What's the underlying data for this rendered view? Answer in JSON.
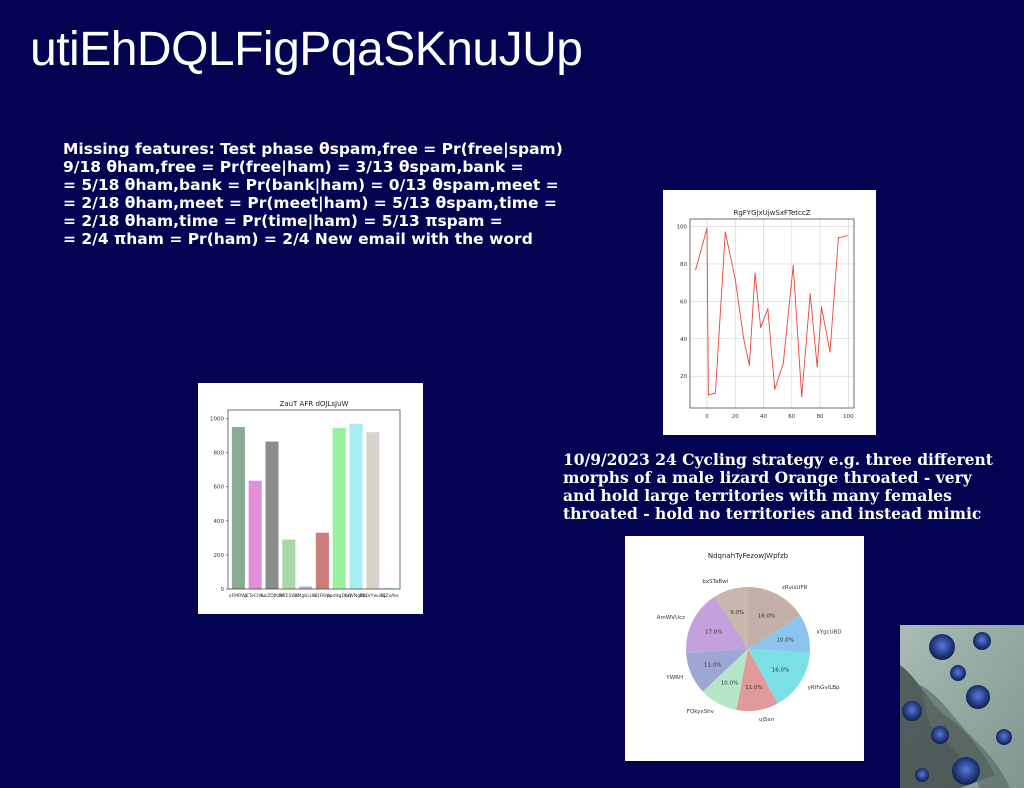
{
  "slide": {
    "title": "utiEhDQLFigPqaSKnuJUp",
    "text1_lines": [
      "Missing features: Test phase θspam,free = Pr(free|spam)",
      "9/18 θham,free = Pr(free|ham) = 3/13 θspam,bank =",
      "= 5/18 θham,bank = Pr(bank|ham) = 0/13 θspam,meet =",
      "= 2/18 θham,meet = Pr(meet|ham) = 5/13 θspam,time =",
      "= 2/18 θham,time = Pr(time|ham) = 5/13 πspam =",
      "= 2/4 πham = Pr(ham) = 2/4 New email with the word"
    ],
    "text2_lines": [
      "10/9/2023 24 Cycling strategy e.g. three different",
      "morphs of a male lizard Orange throated - very",
      "and hold large territories with many females",
      "throated - hold no territories and instead mimic"
    ],
    "colors": {
      "background": "#030352",
      "text": "#ffffff"
    }
  },
  "chart_data": [
    {
      "type": "line",
      "title": "RgFYGjxUjwSxFTetccZ",
      "x": [
        -8,
        0,
        1,
        6,
        13,
        20,
        26,
        30,
        34,
        38,
        43,
        48,
        54,
        61,
        67,
        73,
        78,
        81,
        87,
        93,
        99
      ],
      "y": [
        77,
        99,
        10,
        11,
        97,
        72,
        40,
        26,
        75,
        46,
        56,
        13,
        27,
        79,
        9,
        64,
        25,
        57,
        33,
        94,
        95
      ],
      "xlim": [
        -12,
        104
      ],
      "ylim": [
        3,
        104
      ],
      "xticks": [
        0,
        20,
        40,
        60,
        80,
        100
      ],
      "yticks": [
        20,
        40,
        60,
        80,
        100
      ],
      "grid": true,
      "color": "#e8463a"
    },
    {
      "type": "bar",
      "title": "ZauT AFR dOJLsJuW",
      "categories": [
        "xFMRWs",
        "jCTeCHkc",
        "YusZDJKAB",
        "WYESWC",
        "zMgbLHb",
        "SDFKMy",
        "poddgDoQ",
        "fuWNglNz",
        "BKLVYwuGL",
        "NjZxAte"
      ],
      "values": [
        950,
        635,
        865,
        290,
        15,
        330,
        945,
        970,
        920,
        5
      ],
      "colors": [
        "#8aab93",
        "#e08fd8",
        "#8c8c8c",
        "#a8d8a8",
        "#c0aad6",
        "#cc7f7a",
        "#98f0a0",
        "#a6eef2",
        "#d8d4cc",
        "#a8d8d8"
      ],
      "ylim": [
        0,
        1050
      ],
      "yticks": [
        0,
        200,
        400,
        600,
        800,
        1000
      ]
    },
    {
      "type": "pie",
      "title": "NdqnahTyFezowJWpfzb",
      "labels": [
        "zRvisUFR",
        "xYgcUBD",
        "yRfhGvlLBp",
        "ujSxn",
        "FQkyxShv",
        "YWRH",
        "AmWVUcz",
        "bxSTaBwi"
      ],
      "values": [
        16.0,
        10.0,
        16.0,
        11.0,
        10.0,
        11.0,
        17.0,
        9.0
      ],
      "pct_labels": [
        "16.0%",
        "10.0%",
        "16.0%",
        "11.0%",
        "10.0%",
        "11.0%",
        "17.0%",
        "9.0%"
      ],
      "colors": [
        "#c4b0a8",
        "#8cc4f0",
        "#7ddfe6",
        "#e09a9a",
        "#b4e6c8",
        "#9ea6d4",
        "#c4a0dc",
        "#c8b8ac"
      ]
    }
  ]
}
